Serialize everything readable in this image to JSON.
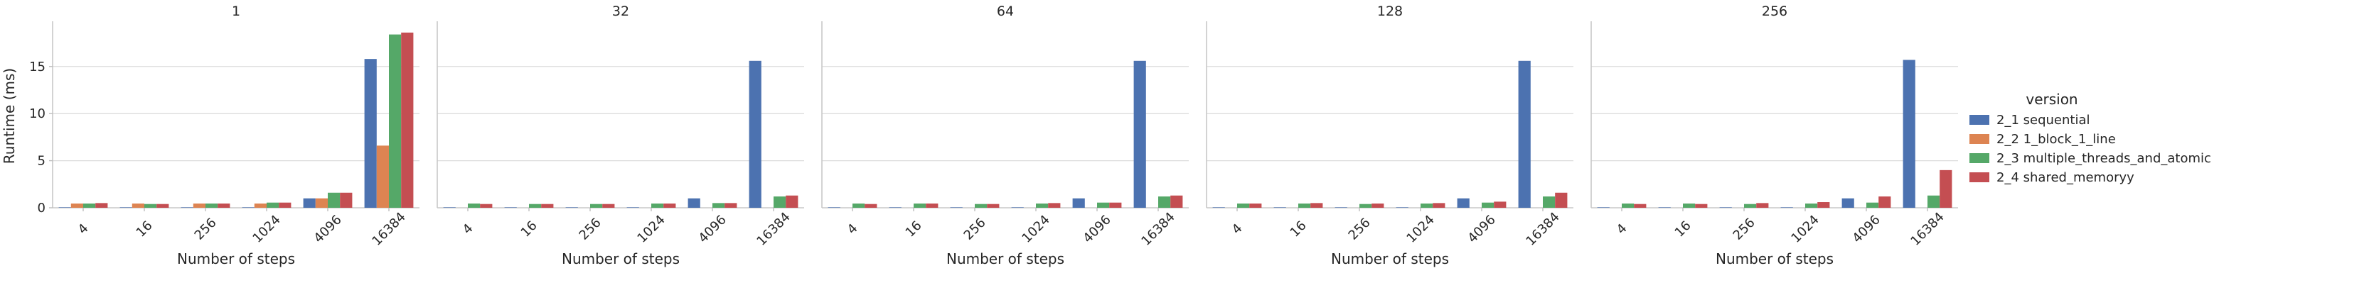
{
  "chart_data": {
    "type": "bar",
    "xlabel": "Number of steps",
    "ylabel": "Runtime (ms)",
    "ylim": [
      0,
      19.5
    ],
    "yticks": [
      0,
      5,
      10,
      15
    ],
    "categories": [
      "4",
      "16",
      "256",
      "1024",
      "4096",
      "16384"
    ],
    "grid": true,
    "legend": {
      "title": "version",
      "placement": "right",
      "entries": [
        "2_1 sequential",
        "2_2 1_block_1_line",
        "2_3 multiple_threads_and_atomic",
        "2_4 shared_memoryy"
      ],
      "colors": [
        "#4c72b0",
        "#dd8452",
        "#55a868",
        "#c44e52"
      ]
    },
    "panels": [
      {
        "title": "1",
        "series": [
          {
            "name": "2_1 sequential",
            "values": [
              0.05,
              0.05,
              0.05,
              0.05,
              1.0,
              15.8
            ]
          },
          {
            "name": "2_2 1_block_1_line",
            "values": [
              0.45,
              0.45,
              0.45,
              0.45,
              1.0,
              6.6
            ]
          },
          {
            "name": "2_3 multiple_threads_and_atomic",
            "values": [
              0.45,
              0.4,
              0.45,
              0.55,
              1.6,
              18.4
            ]
          },
          {
            "name": "2_4 shared_memoryy",
            "values": [
              0.5,
              0.4,
              0.45,
              0.55,
              1.6,
              18.6
            ]
          }
        ]
      },
      {
        "title": "32",
        "series": [
          {
            "name": "2_1 sequential",
            "values": [
              0.05,
              0.05,
              0.05,
              0.05,
              1.0,
              15.6
            ]
          },
          {
            "name": "2_2 1_block_1_line",
            "values": [
              0.0,
              0.0,
              0.0,
              0.0,
              0.0,
              0.0
            ]
          },
          {
            "name": "2_3 multiple_threads_and_atomic",
            "values": [
              0.45,
              0.4,
              0.4,
              0.45,
              0.5,
              1.2
            ]
          },
          {
            "name": "2_4 shared_memoryy",
            "values": [
              0.4,
              0.4,
              0.4,
              0.45,
              0.5,
              1.3
            ]
          }
        ]
      },
      {
        "title": "64",
        "series": [
          {
            "name": "2_1 sequential",
            "values": [
              0.05,
              0.05,
              0.05,
              0.05,
              1.0,
              15.6
            ]
          },
          {
            "name": "2_2 1_block_1_line",
            "values": [
              0.0,
              0.0,
              0.0,
              0.0,
              0.0,
              0.0
            ]
          },
          {
            "name": "2_3 multiple_threads_and_atomic",
            "values": [
              0.45,
              0.45,
              0.4,
              0.45,
              0.55,
              1.2
            ]
          },
          {
            "name": "2_4 shared_memoryy",
            "values": [
              0.4,
              0.45,
              0.4,
              0.5,
              0.55,
              1.3
            ]
          }
        ]
      },
      {
        "title": "128",
        "series": [
          {
            "name": "2_1 sequential",
            "values": [
              0.05,
              0.05,
              0.05,
              0.05,
              1.0,
              15.6
            ]
          },
          {
            "name": "2_2 1_block_1_line",
            "values": [
              0.0,
              0.0,
              0.0,
              0.0,
              0.0,
              0.0
            ]
          },
          {
            "name": "2_3 multiple_threads_and_atomic",
            "values": [
              0.45,
              0.45,
              0.4,
              0.45,
              0.55,
              1.2
            ]
          },
          {
            "name": "2_4 shared_memoryy",
            "values": [
              0.45,
              0.5,
              0.45,
              0.5,
              0.65,
              1.6
            ]
          }
        ]
      },
      {
        "title": "256",
        "series": [
          {
            "name": "2_1 sequential",
            "values": [
              0.05,
              0.05,
              0.05,
              0.05,
              1.0,
              15.7
            ]
          },
          {
            "name": "2_2 1_block_1_line",
            "values": [
              0.0,
              0.0,
              0.0,
              0.0,
              0.0,
              0.0
            ]
          },
          {
            "name": "2_3 multiple_threads_and_atomic",
            "values": [
              0.45,
              0.45,
              0.4,
              0.45,
              0.55,
              1.3
            ]
          },
          {
            "name": "2_4 shared_memoryy",
            "values": [
              0.4,
              0.4,
              0.5,
              0.6,
              1.2,
              4.0
            ]
          }
        ]
      }
    ]
  }
}
